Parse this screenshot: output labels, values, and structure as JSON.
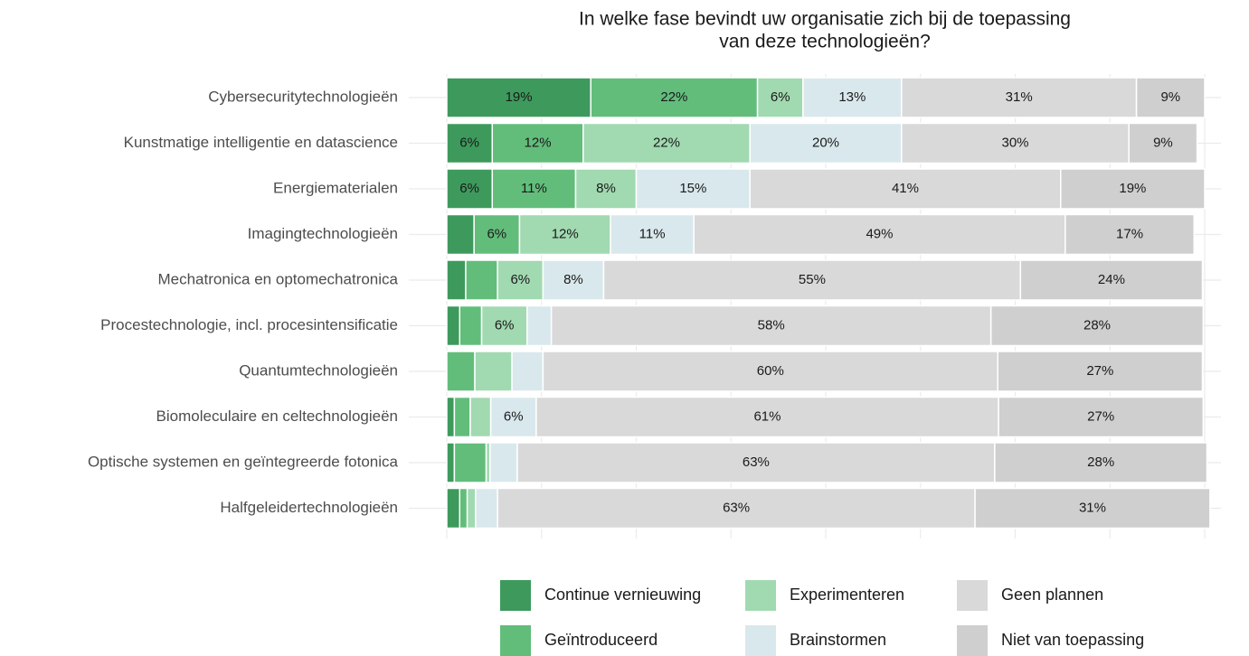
{
  "chart_data": {
    "type": "stacked_barh",
    "title": [
      "In welke fase bevindt uw organisatie zich bij de toepassing",
      "van deze technologieën?"
    ],
    "categories": [
      "Cybersecuritytechnologieën",
      "Kunstmatige intelligentie en datascience",
      "Energiematerialen",
      "Imagingtechnologieën",
      "Mechatronica en optomechatronica",
      "Procestechnologie, incl. procesintensificatie",
      "Quantumtechnologieën",
      "Biomoleculaire en celtechnologieën",
      "Optische systemen en geïntegreerde fotonica",
      "Halfgeleidertechnologieën"
    ],
    "xlim": [
      0,
      100
    ],
    "xticks": [
      0,
      12.5,
      25,
      37.5,
      50,
      62.5,
      75,
      87.5,
      100
    ],
    "grid": true,
    "legend": "bottom",
    "series": [
      {
        "name": "Continue vernieuwing",
        "color": "#3d9a5c",
        "values": [
          19,
          6,
          6,
          3.6,
          2.5,
          1.7,
          0,
          1.0,
          1.0,
          1.7
        ],
        "value_labels": [
          "19%",
          "6%",
          "6%",
          null,
          null,
          null,
          null,
          null,
          null,
          null
        ]
      },
      {
        "name": "Geïntroduceerd",
        "color": "#62bd7b",
        "values": [
          22,
          12,
          11,
          6,
          4.2,
          2.9,
          3.7,
          2.1,
          4.2,
          1.0
        ],
        "value_labels": [
          "22%",
          "12%",
          "11%",
          "6%",
          null,
          null,
          null,
          null,
          null,
          null
        ]
      },
      {
        "name": "Experimenteren",
        "color": "#a1d9b1",
        "values": [
          6,
          22,
          8,
          12,
          6,
          6,
          4.9,
          2.7,
          0.5,
          1.1
        ],
        "value_labels": [
          "6%",
          "22%",
          "8%",
          "12%",
          "6%",
          "6%",
          null,
          null,
          null,
          null
        ]
      },
      {
        "name": "Brainstormen",
        "color": "#d9e8ec",
        "values": [
          13,
          20,
          15,
          11,
          8,
          3.2,
          4.1,
          6,
          3.6,
          2.9
        ],
        "value_labels": [
          "13%",
          "20%",
          "15%",
          "11%",
          "8%",
          null,
          null,
          "6%",
          null,
          null
        ]
      },
      {
        "name": "Geen plannen",
        "color": "#d9d9d9",
        "values": [
          31,
          30,
          41,
          49,
          55,
          58,
          60,
          61,
          63,
          63
        ],
        "value_labels": [
          "31%",
          "30%",
          "41%",
          "49%",
          "55%",
          "58%",
          "60%",
          "61%",
          "63%",
          "63%"
        ]
      },
      {
        "name": "Niet van toepassing",
        "color": "#cfcfcf",
        "values": [
          9,
          9,
          19,
          17,
          24,
          28,
          27,
          27,
          28,
          31
        ],
        "value_labels": [
          "9%",
          "9%",
          "19%",
          "17%",
          "24%",
          "28%",
          "27%",
          "27%",
          "28%",
          "31%"
        ]
      }
    ]
  }
}
